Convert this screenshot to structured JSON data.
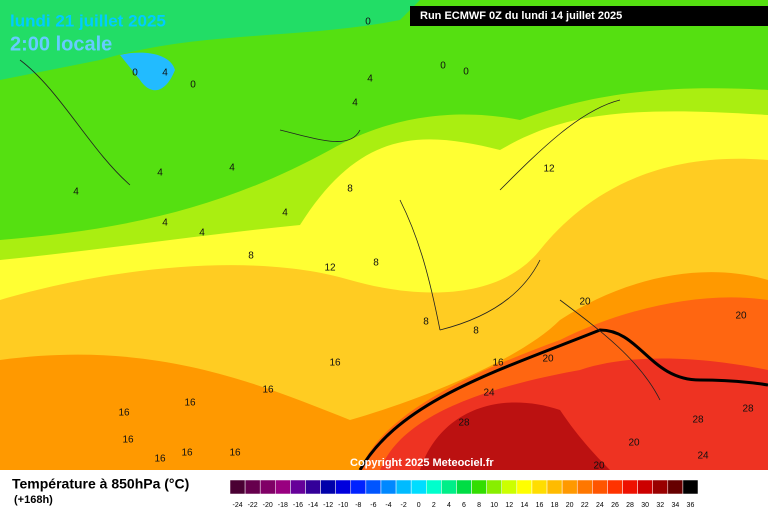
{
  "header": {
    "date": "lundi 21 juillet 2025",
    "time": "2:00 locale"
  },
  "run": "Run ECMWF 0Z du lundi 14 juillet 2025",
  "copyright": "Copyright 2025 Meteociel.fr",
  "legend": {
    "title": "Température à 850hPa (°C)",
    "lead": "(+168h)",
    "ticks": [
      -24,
      -22,
      -20,
      -18,
      -16,
      -14,
      -12,
      -10,
      -8,
      -6,
      -4,
      -2,
      0,
      2,
      4,
      6,
      8,
      10,
      12,
      14,
      16,
      18,
      20,
      22,
      24,
      26,
      28,
      30,
      32,
      34,
      36
    ],
    "colors": [
      "#4a0033",
      "#66004d",
      "#800066",
      "#990080",
      "#660099",
      "#330099",
      "#0000aa",
      "#0000dd",
      "#0022ff",
      "#0055ff",
      "#0088ff",
      "#00bbff",
      "#00ddff",
      "#00ffcc",
      "#00ee88",
      "#00dd44",
      "#33dd00",
      "#88ee00",
      "#ccff00",
      "#ffff00",
      "#ffdd00",
      "#ffbb00",
      "#ff9900",
      "#ff7700",
      "#ff5500",
      "#ff3300",
      "#ee1100",
      "#cc0000",
      "#990000",
      "#660000",
      "#000000"
    ]
  },
  "contour_labels": [
    0,
    0,
    4,
    0,
    0,
    0,
    4,
    4,
    4,
    4,
    4,
    4,
    4,
    4,
    8,
    8,
    8,
    12,
    12,
    8,
    8,
    20,
    20,
    20,
    16,
    16,
    16,
    16,
    16,
    16,
    16,
    16,
    16,
    24,
    28,
    28,
    28,
    20,
    24,
    20
  ]
}
